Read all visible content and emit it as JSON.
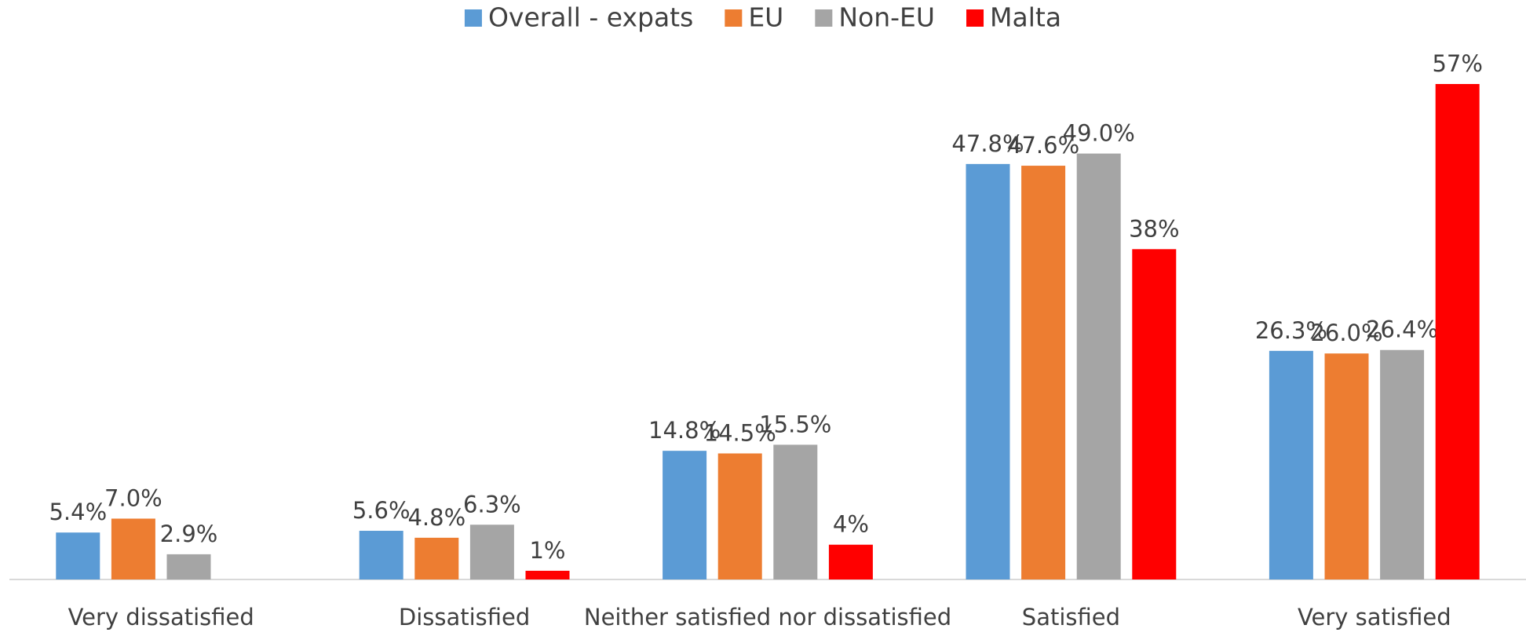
{
  "chart_data": {
    "type": "bar",
    "categories": [
      "Very dissatisfied",
      "Dissatisfied",
      "Neither satisfied nor dissatisfied",
      "Satisfied",
      "Very satisfied"
    ],
    "series": [
      {
        "name": "Overall - expats",
        "color": "#5b9bd5",
        "values": [
          5.4,
          5.6,
          14.8,
          47.8,
          26.3
        ],
        "value_labels": [
          "5.4%",
          "5.6%",
          "14.8%",
          "47.8%",
          "26.3%"
        ]
      },
      {
        "name": "EU",
        "color": "#ed7d31",
        "values": [
          7.0,
          4.8,
          14.5,
          47.6,
          26.0
        ],
        "value_labels": [
          "7.0%",
          "4.8%",
          "14.5%",
          "47.6%",
          "26.0%"
        ]
      },
      {
        "name": "Non-EU",
        "color": "#a5a5a5",
        "values": [
          2.9,
          6.3,
          15.5,
          49.0,
          26.4
        ],
        "value_labels": [
          "2.9%",
          "6.3%",
          "15.5%",
          "49.0%",
          "26.4%"
        ]
      },
      {
        "name": "Malta",
        "color": "#ff0000",
        "values": [
          null,
          1,
          4,
          38,
          57
        ],
        "value_labels": [
          null,
          "1%",
          "4%",
          "38%",
          "57%"
        ]
      }
    ],
    "legend": "top"
  }
}
